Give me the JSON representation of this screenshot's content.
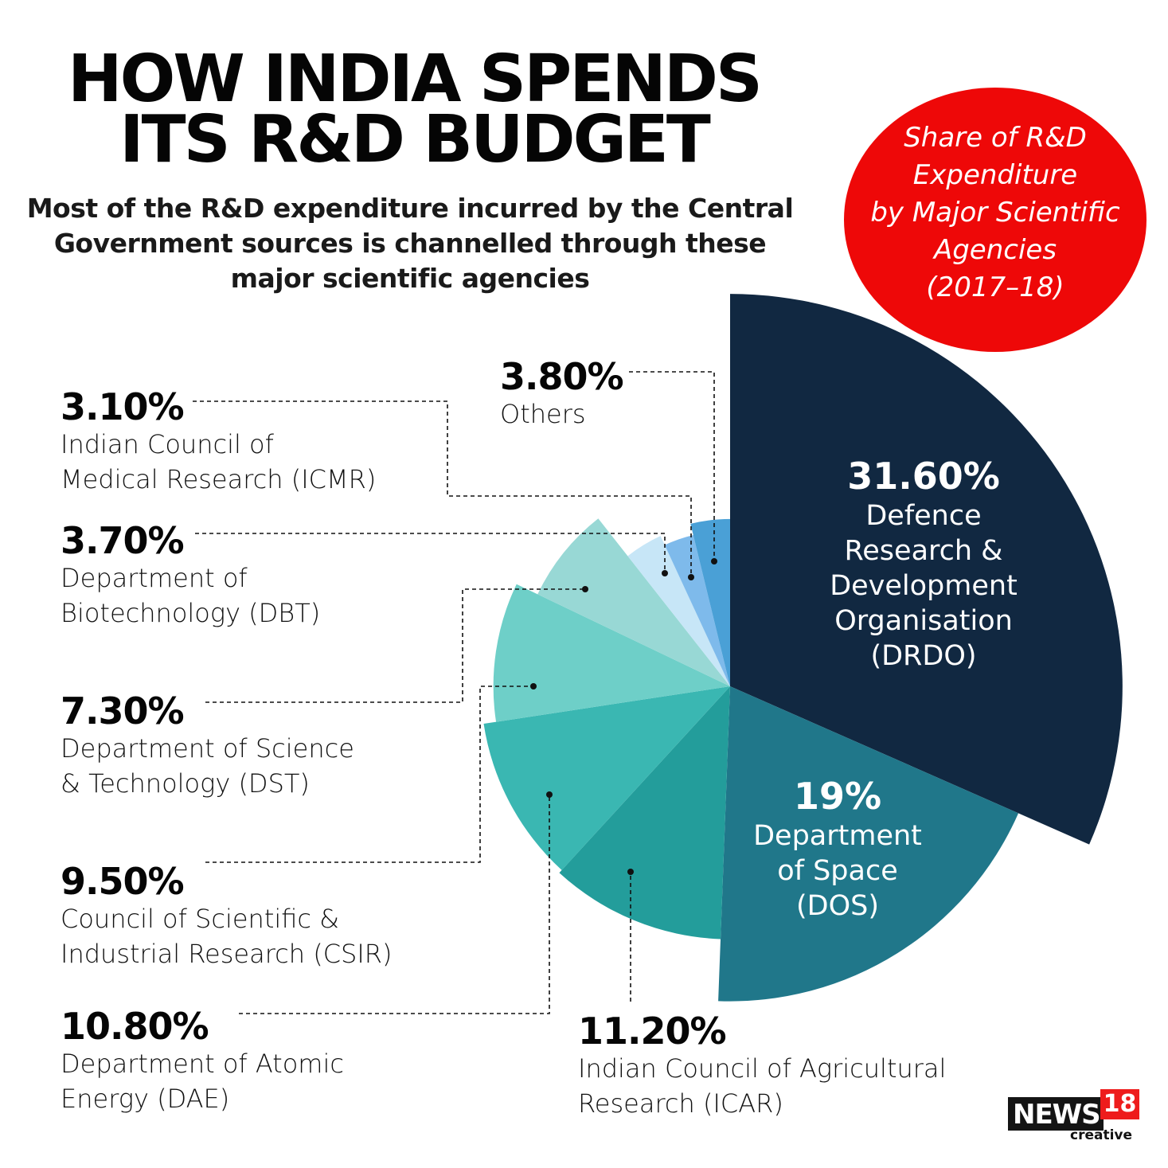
{
  "header": {
    "title_line1": "HOW INDIA SPENDS",
    "title_line2": "ITS R&D BUDGET",
    "subtitle": "Most of the R&D expenditure incurred by the Central Government sources is channelled through these major scientific agencies"
  },
  "badge": {
    "text": "Share of R&D\nExpenditure\nby Major Scientific\nAgencies\n(2017–18)",
    "color": "#ee0808"
  },
  "brand": {
    "news": "NEWS",
    "number": "18",
    "sub": "creative"
  },
  "chart_data": {
    "type": "pie",
    "variant": "polar-area (radius scaled by share)",
    "title": "Share of R&D Expenditure by Major Scientific Agencies (2017–18)",
    "unit": "%",
    "start": "top, clockwise",
    "slices": [
      {
        "key": "drdo",
        "pct_label": "31.60%",
        "value": 31.6,
        "name": "Defence\nResearch &\nDevelopment\nOrganisation\n(DRDO)",
        "color": "#112841"
      },
      {
        "key": "dos",
        "pct_label": "19%",
        "value": 19.0,
        "name": "Department\nof Space\n(DOS)",
        "color": "#20778a"
      },
      {
        "key": "icar",
        "pct_label": "11.20%",
        "value": 11.2,
        "name": "Indian Council of Agricultural\nResearch (ICAR)",
        "color": "#239d9b"
      },
      {
        "key": "dae",
        "pct_label": "10.80%",
        "value": 10.8,
        "name": "Department of Atomic\nEnergy (DAE)",
        "color": "#3ab7b2"
      },
      {
        "key": "csir",
        "pct_label": "9.50%",
        "value": 9.5,
        "name": "Council of Scientific &\nIndustrial Research (CSIR)",
        "color": "#6ecfc8"
      },
      {
        "key": "dst",
        "pct_label": "7.30%",
        "value": 7.3,
        "name": "Department of Science\n& Technology (DST)",
        "color": "#98d8d5"
      },
      {
        "key": "dbt",
        "pct_label": "3.70%",
        "value": 3.7,
        "name": "Department of\nBiotechnology (DBT)",
        "color": "#c7e6f7"
      },
      {
        "key": "icmr",
        "pct_label": "3.10%",
        "value": 3.1,
        "name": "Indian Council of\nMedical Research (ICMR)",
        "color": "#7ebaeb"
      },
      {
        "key": "others",
        "pct_label": "3.80%",
        "value": 3.8,
        "name": "Others",
        "color": "#4aa0d6"
      }
    ]
  }
}
